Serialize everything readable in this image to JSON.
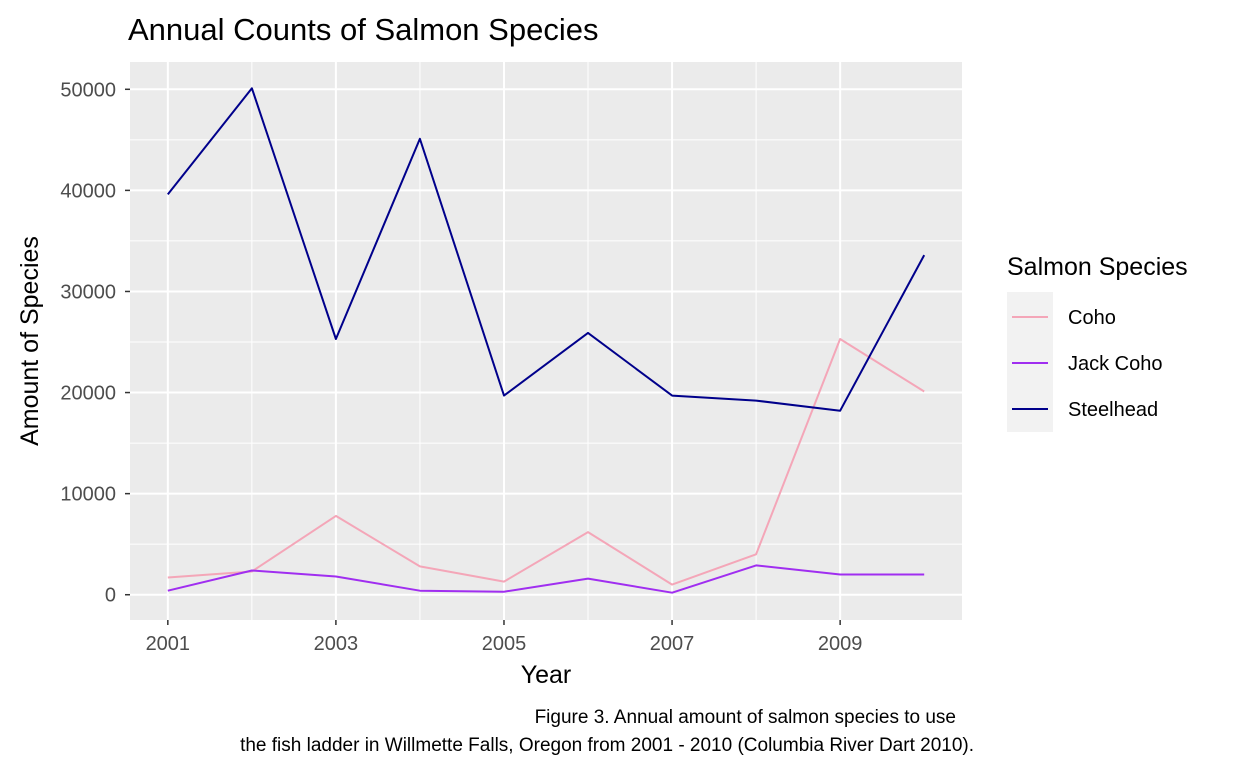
{
  "chart_data": {
    "type": "line",
    "title": "Annual Counts of Salmon Species",
    "xlabel": "Year",
    "ylabel": "Amount of Species",
    "x": [
      2001,
      2002,
      2003,
      2004,
      2005,
      2006,
      2007,
      2008,
      2009,
      2010
    ],
    "xticks": [
      2001,
      2003,
      2005,
      2007,
      2009
    ],
    "xtick_labels": [
      "2001",
      "2003",
      "2005",
      "2007",
      "2009"
    ],
    "xlim": [
      2000.55,
      2010.45
    ],
    "yticks": [
      0,
      10000,
      20000,
      30000,
      40000,
      50000
    ],
    "ytick_labels": [
      "0",
      "10000",
      "20000",
      "30000",
      "40000",
      "50000"
    ],
    "ylim": [
      -2500,
      52700
    ],
    "grid": true,
    "legend": {
      "title": "Salmon Species",
      "position": "right"
    },
    "series": [
      {
        "name": "Coho",
        "color": "#f4a6b8",
        "values": [
          1700,
          2300,
          7800,
          2800,
          1300,
          6200,
          1000,
          4000,
          25300,
          20100
        ]
      },
      {
        "name": "Jack Coho",
        "color": "#a02ef0",
        "values": [
          400,
          2400,
          1800,
          400,
          300,
          1600,
          200,
          2900,
          2000,
          2000
        ]
      },
      {
        "name": "Steelhead",
        "color": "#00008b",
        "values": [
          39600,
          50100,
          25300,
          45100,
          19700,
          25900,
          19700,
          19200,
          18200,
          33600
        ]
      }
    ],
    "caption": [
      "Figure 3. Annual amount of salmon species to use",
      "the fish ladder in Willmette Falls, Oregon from 2001 - 2010 (Columbia River Dart 2010)."
    ]
  }
}
